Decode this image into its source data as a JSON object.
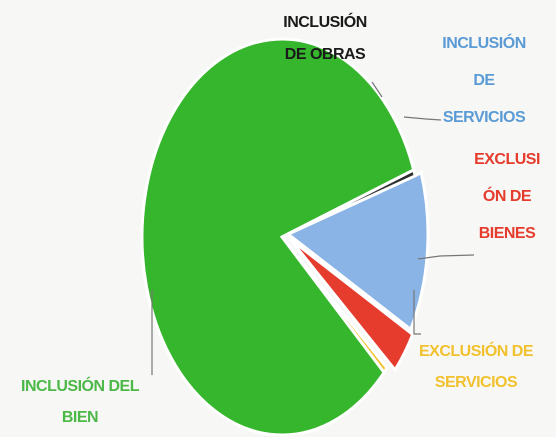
{
  "chart_data": {
    "type": "pie",
    "title": "",
    "start_angle_deg": -18,
    "slices": [
      {
        "label_lines": [
          "INCLUSIÓN",
          "DE SERVICIOS"
        ],
        "display_lines": [
          "INCLUSIÓN",
          "DE",
          "SERVICIOS"
        ],
        "value": 13,
        "color": "#8ab4e6",
        "label_color": "#5b9bd5",
        "exploded": true
      },
      {
        "label_lines": [
          "EXCLUSIÓN DE",
          "BIENES"
        ],
        "display_lines": [
          "EXCLUSI",
          "ÓN DE",
          "BIENES"
        ],
        "value": 3.5,
        "color": "#e53c2d",
        "label_color": "#e53c2d",
        "exploded": true
      },
      {
        "label_lines": [
          "EXCLUSIÓN DE",
          "SERVICIOS"
        ],
        "display_lines": [
          "EXCLUSIÓN DE",
          "SERVICIOS"
        ],
        "value": 0.5,
        "color": "#f2c12e",
        "label_color": "#f2c12e",
        "exploded": false
      },
      {
        "label_lines": [
          "INCLUSIÓN DEL",
          "BIEN"
        ],
        "display_lines": [
          "INCLUSIÓN DEL",
          "BIEN"
        ],
        "value": 82.5,
        "color": "#36b62c",
        "label_color": "#4cb848",
        "exploded": false
      },
      {
        "label_lines": [
          "INCLUSIÓN",
          "DE OBRAS"
        ],
        "display_lines": [
          "INCLUSIÓN",
          "DE OBRAS"
        ],
        "value": 0.5,
        "color": "#2e2e2e",
        "label_color": "#1a1a1a",
        "exploded": false
      }
    ],
    "legend": "none",
    "grid": false
  }
}
